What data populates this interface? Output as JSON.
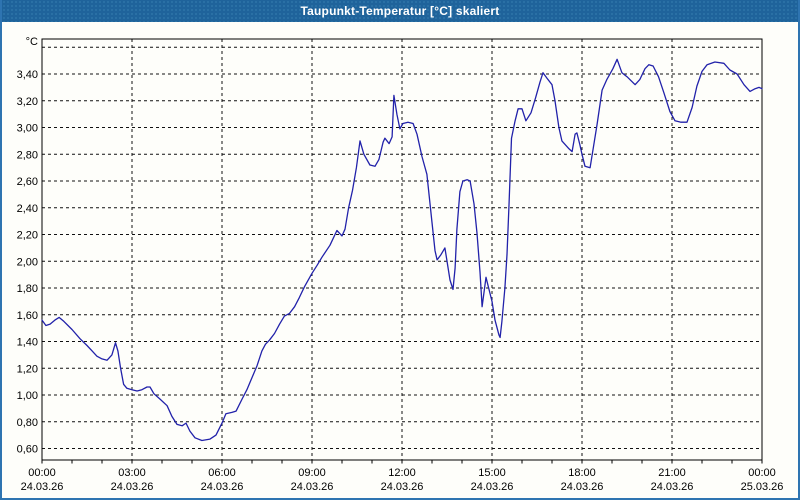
{
  "window": {
    "title": "Taupunkt-Temperatur [°C] skaliert"
  },
  "colors": {
    "titlebar_bg": "#1F639B",
    "titlebar_text": "#FFFFFF",
    "window_border": "#2E74B1",
    "window_bg": "#FEFEFA",
    "grid_color": "#111111",
    "frame_color": "#000000",
    "label_color": "#000000",
    "series_color": "#2222AA"
  },
  "chart_data": {
    "type": "line",
    "title": "Taupunkt-Temperatur [°C] skaliert",
    "grid": "dashed",
    "legend": "none",
    "y_axis": {
      "unit_label": "°C",
      "min": 0.514,
      "max": 3.662,
      "tick_step": 0.2,
      "ticks": [
        {
          "value": 0.6,
          "label": "0,60"
        },
        {
          "value": 0.8,
          "label": "0,80"
        },
        {
          "value": 1.0,
          "label": "1,00"
        },
        {
          "value": 1.2,
          "label": "1,20"
        },
        {
          "value": 1.4,
          "label": "1,40"
        },
        {
          "value": 1.6,
          "label": "1,60"
        },
        {
          "value": 1.8,
          "label": "1,80"
        },
        {
          "value": 2.0,
          "label": "2,00"
        },
        {
          "value": 2.2,
          "label": "2,20"
        },
        {
          "value": 2.4,
          "label": "2,40"
        },
        {
          "value": 2.6,
          "label": "2,60"
        },
        {
          "value": 2.8,
          "label": "2,80"
        },
        {
          "value": 3.0,
          "label": "3,00"
        },
        {
          "value": 3.2,
          "label": "3,20"
        },
        {
          "value": 3.4,
          "label": "3,40"
        },
        {
          "value": 3.6,
          "label": ""
        }
      ]
    },
    "x_axis": {
      "start_hour": 0,
      "end_hour": 24,
      "minor_tick_every_hours": 1,
      "major_ticks": [
        {
          "hour": 0,
          "time": "00:00",
          "date": "24.03.26",
          "grid": false
        },
        {
          "hour": 3,
          "time": "03:00",
          "date": "24.03.26",
          "grid": true
        },
        {
          "hour": 6,
          "time": "06:00",
          "date": "24.03.26",
          "grid": true
        },
        {
          "hour": 9,
          "time": "09:00",
          "date": "24.03.26",
          "grid": true
        },
        {
          "hour": 12,
          "time": "12:00",
          "date": "24.03.26",
          "grid": true
        },
        {
          "hour": 15,
          "time": "15:00",
          "date": "24.03.26",
          "grid": true
        },
        {
          "hour": 18,
          "time": "18:00",
          "date": "24.03.26",
          "grid": true
        },
        {
          "hour": 21,
          "time": "21:00",
          "date": "24.03.26",
          "grid": true
        },
        {
          "hour": 24,
          "time": "00:00",
          "date": "25.03.26",
          "grid": false
        }
      ]
    },
    "series": [
      {
        "name": "Taupunkt-Temperatur [°C]",
        "color": "#2222AA",
        "points_hour_value": [
          [
            0.0,
            1.56
          ],
          [
            0.13,
            1.52
          ],
          [
            0.27,
            1.53
          ],
          [
            0.43,
            1.56
          ],
          [
            0.57,
            1.58
          ],
          [
            0.73,
            1.55
          ],
          [
            1.0,
            1.49
          ],
          [
            1.27,
            1.42
          ],
          [
            1.5,
            1.37
          ],
          [
            1.67,
            1.33
          ],
          [
            1.83,
            1.29
          ],
          [
            2.0,
            1.27
          ],
          [
            2.17,
            1.26
          ],
          [
            2.33,
            1.3
          ],
          [
            2.45,
            1.39
          ],
          [
            2.53,
            1.33
          ],
          [
            2.62,
            1.2
          ],
          [
            2.72,
            1.08
          ],
          [
            2.83,
            1.05
          ],
          [
            3.0,
            1.04
          ],
          [
            3.17,
            1.03
          ],
          [
            3.33,
            1.04
          ],
          [
            3.5,
            1.06
          ],
          [
            3.6,
            1.06
          ],
          [
            3.73,
            1.01
          ],
          [
            3.93,
            0.97
          ],
          [
            4.17,
            0.92
          ],
          [
            4.33,
            0.84
          ],
          [
            4.5,
            0.78
          ],
          [
            4.67,
            0.77
          ],
          [
            4.8,
            0.79
          ],
          [
            4.93,
            0.73
          ],
          [
            5.1,
            0.68
          ],
          [
            5.33,
            0.66
          ],
          [
            5.6,
            0.67
          ],
          [
            5.8,
            0.7
          ],
          [
            6.0,
            0.79
          ],
          [
            6.13,
            0.86
          ],
          [
            6.33,
            0.87
          ],
          [
            6.47,
            0.88
          ],
          [
            6.67,
            0.97
          ],
          [
            6.83,
            1.04
          ],
          [
            7.0,
            1.13
          ],
          [
            7.17,
            1.22
          ],
          [
            7.33,
            1.33
          ],
          [
            7.45,
            1.38
          ],
          [
            7.58,
            1.41
          ],
          [
            7.75,
            1.46
          ],
          [
            7.92,
            1.53
          ],
          [
            8.08,
            1.59
          ],
          [
            8.25,
            1.61
          ],
          [
            8.42,
            1.66
          ],
          [
            8.58,
            1.73
          ],
          [
            8.75,
            1.81
          ],
          [
            9.0,
            1.91
          ],
          [
            9.17,
            1.97
          ],
          [
            9.33,
            2.03
          ],
          [
            9.6,
            2.12
          ],
          [
            9.83,
            2.23
          ],
          [
            10.0,
            2.19
          ],
          [
            10.1,
            2.24
          ],
          [
            10.22,
            2.4
          ],
          [
            10.35,
            2.53
          ],
          [
            10.48,
            2.7
          ],
          [
            10.6,
            2.9
          ],
          [
            10.73,
            2.8
          ],
          [
            10.93,
            2.72
          ],
          [
            11.1,
            2.71
          ],
          [
            11.23,
            2.76
          ],
          [
            11.37,
            2.89
          ],
          [
            11.43,
            2.92
          ],
          [
            11.57,
            2.88
          ],
          [
            11.67,
            2.93
          ],
          [
            11.73,
            3.24
          ],
          [
            11.83,
            3.1
          ],
          [
            11.93,
            2.99
          ],
          [
            12.03,
            3.03
          ],
          [
            12.2,
            3.04
          ],
          [
            12.37,
            3.03
          ],
          [
            12.5,
            2.95
          ],
          [
            12.67,
            2.78
          ],
          [
            12.83,
            2.65
          ],
          [
            13.0,
            2.29
          ],
          [
            13.1,
            2.08
          ],
          [
            13.17,
            2.01
          ],
          [
            13.3,
            2.05
          ],
          [
            13.43,
            2.1
          ],
          [
            13.6,
            1.86
          ],
          [
            13.7,
            1.79
          ],
          [
            13.77,
            1.95
          ],
          [
            13.83,
            2.24
          ],
          [
            13.93,
            2.52
          ],
          [
            14.03,
            2.6
          ],
          [
            14.17,
            2.61
          ],
          [
            14.27,
            2.6
          ],
          [
            14.4,
            2.43
          ],
          [
            14.5,
            2.21
          ],
          [
            14.6,
            1.92
          ],
          [
            14.67,
            1.66
          ],
          [
            14.8,
            1.88
          ],
          [
            14.9,
            1.79
          ],
          [
            15.0,
            1.7
          ],
          [
            15.1,
            1.56
          ],
          [
            15.23,
            1.45
          ],
          [
            15.27,
            1.43
          ],
          [
            15.33,
            1.55
          ],
          [
            15.43,
            1.8
          ],
          [
            15.5,
            2.05
          ],
          [
            15.57,
            2.44
          ],
          [
            15.65,
            2.92
          ],
          [
            15.77,
            3.05
          ],
          [
            15.87,
            3.14
          ],
          [
            16.0,
            3.14
          ],
          [
            16.13,
            3.05
          ],
          [
            16.3,
            3.11
          ],
          [
            16.45,
            3.22
          ],
          [
            16.6,
            3.34
          ],
          [
            16.7,
            3.41
          ],
          [
            16.83,
            3.37
          ],
          [
            17.0,
            3.32
          ],
          [
            17.1,
            3.2
          ],
          [
            17.23,
            3.0
          ],
          [
            17.33,
            2.9
          ],
          [
            17.57,
            2.84
          ],
          [
            17.67,
            2.82
          ],
          [
            17.77,
            2.95
          ],
          [
            17.83,
            2.96
          ],
          [
            17.93,
            2.87
          ],
          [
            18.0,
            2.8
          ],
          [
            18.1,
            2.71
          ],
          [
            18.27,
            2.7
          ],
          [
            18.5,
            3.02
          ],
          [
            18.67,
            3.28
          ],
          [
            18.83,
            3.36
          ],
          [
            19.03,
            3.44
          ],
          [
            19.17,
            3.51
          ],
          [
            19.33,
            3.41
          ],
          [
            19.5,
            3.38
          ],
          [
            19.77,
            3.32
          ],
          [
            19.93,
            3.36
          ],
          [
            20.1,
            3.44
          ],
          [
            20.23,
            3.47
          ],
          [
            20.37,
            3.46
          ],
          [
            20.55,
            3.38
          ],
          [
            20.73,
            3.26
          ],
          [
            20.93,
            3.12
          ],
          [
            21.1,
            3.05
          ],
          [
            21.3,
            3.04
          ],
          [
            21.5,
            3.04
          ],
          [
            21.67,
            3.15
          ],
          [
            21.83,
            3.31
          ],
          [
            22.0,
            3.42
          ],
          [
            22.17,
            3.47
          ],
          [
            22.43,
            3.49
          ],
          [
            22.73,
            3.48
          ],
          [
            22.93,
            3.43
          ],
          [
            23.17,
            3.4
          ],
          [
            23.4,
            3.32
          ],
          [
            23.6,
            3.27
          ],
          [
            23.77,
            3.29
          ],
          [
            23.9,
            3.3
          ],
          [
            24.0,
            3.29
          ]
        ]
      }
    ]
  }
}
